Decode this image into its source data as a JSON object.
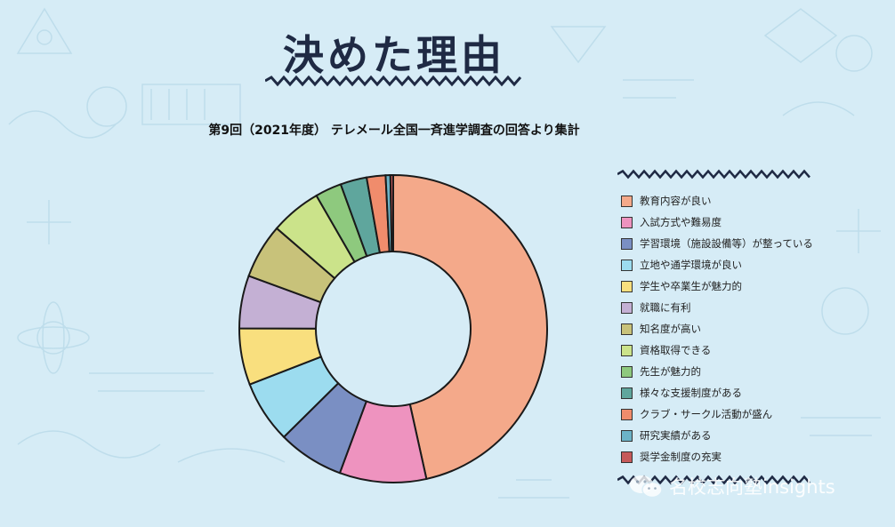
{
  "header": {
    "title": "決めた理由",
    "subtitle": "第9回（2021年度） テレメール全国一斉進学調査の回答より集計"
  },
  "chart_data": {
    "type": "pie",
    "donut": true,
    "legend_position": "right",
    "categories": [
      "教育内容が良い",
      "入試方式や難易度",
      "学習環境（施設設備等）が整っている",
      "立地や通学環境が良い",
      "学生や卒業生が魅力的",
      "就職に有利",
      "知名度が高い",
      "資格取得できる",
      "先生が魅力的",
      "様々な支援制度がある",
      "クラブ・サークル活動が盛ん",
      "研究実績がある",
      "奨学金制度の充実"
    ],
    "values": [
      47.0,
      9.2,
      7.0,
      6.6,
      6.0,
      5.6,
      5.8,
      5.4,
      2.8,
      2.8,
      2.0,
      0.5,
      0.3
    ],
    "colors": [
      "#f4a98a",
      "#ee93bf",
      "#7a8fc3",
      "#9cdcef",
      "#f9df7e",
      "#c4b0d4",
      "#c8c27a",
      "#cbe38a",
      "#8ec97e",
      "#5fa69d",
      "#f08c6c",
      "#6cb3c7",
      "#c65a5a"
    ]
  },
  "watermark": {
    "text": "名校志向塾insights",
    "icon": "wechat-icon"
  }
}
